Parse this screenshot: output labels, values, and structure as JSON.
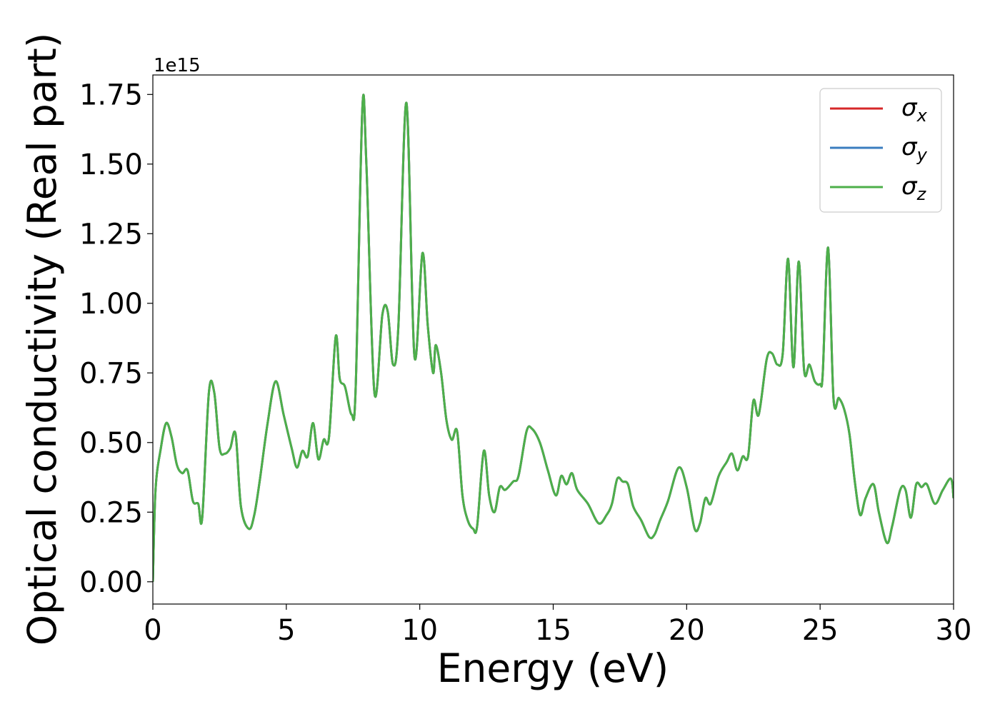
{
  "chart_data": {
    "type": "line",
    "xlabel": "Energy (eV)",
    "ylabel": "Optical conductivity (Real part)",
    "y_offset_label": "1e15",
    "xlim": [
      0,
      30
    ],
    "ylim": [
      -0.08,
      1.82
    ],
    "x_ticks": [
      0,
      5,
      10,
      15,
      20,
      25,
      30
    ],
    "x_tick_labels": [
      "0",
      "5",
      "10",
      "15",
      "20",
      "25",
      "30"
    ],
    "y_ticks": [
      0.0,
      0.25,
      0.5,
      0.75,
      1.0,
      1.25,
      1.5,
      1.75
    ],
    "y_tick_labels": [
      "0.00",
      "0.25",
      "0.50",
      "0.75",
      "1.00",
      "1.25",
      "1.50",
      "1.75"
    ],
    "grid": false,
    "legend_position": "top-right",
    "legend": [
      {
        "symbol": "σ",
        "subscript": "x",
        "color": "#d62728"
      },
      {
        "symbol": "σ",
        "subscript": "y",
        "color": "#3a7dbf"
      },
      {
        "symbol": "σ",
        "subscript": "z",
        "color": "#4daf4a"
      }
    ],
    "series": [
      {
        "name": "σx",
        "color": "#d62728"
      },
      {
        "name": "σy",
        "color": "#3a7dbf"
      },
      {
        "name": "σz",
        "color": "#4daf4a"
      }
    ],
    "x": [
      0.0,
      0.1,
      0.3,
      0.5,
      0.7,
      0.9,
      1.1,
      1.3,
      1.5,
      1.7,
      1.85,
      2.1,
      2.3,
      2.5,
      2.7,
      2.9,
      3.1,
      3.3,
      3.6,
      3.8,
      4.0,
      4.3,
      4.6,
      4.9,
      5.2,
      5.4,
      5.6,
      5.8,
      6.0,
      6.2,
      6.4,
      6.6,
      6.85,
      7.0,
      7.2,
      7.45,
      7.6,
      7.85,
      8.0,
      8.3,
      8.6,
      8.8,
      9.0,
      9.2,
      9.5,
      9.8,
      10.1,
      10.3,
      10.5,
      10.6,
      10.8,
      11.0,
      11.2,
      11.4,
      11.6,
      11.8,
      12.0,
      12.15,
      12.4,
      12.6,
      12.8,
      13.0,
      13.2,
      13.5,
      13.7,
      14.0,
      14.2,
      14.5,
      14.8,
      15.1,
      15.3,
      15.5,
      15.7,
      15.9,
      16.3,
      16.7,
      17.0,
      17.2,
      17.4,
      17.6,
      17.8,
      18.0,
      18.3,
      18.6,
      18.8,
      19.0,
      19.3,
      19.7,
      20.0,
      20.3,
      20.5,
      20.7,
      20.9,
      21.2,
      21.5,
      21.7,
      21.9,
      22.1,
      22.3,
      22.5,
      22.7,
      23.0,
      23.2,
      23.4,
      23.6,
      23.8,
      24.0,
      24.2,
      24.4,
      24.6,
      24.8,
      25.0,
      25.1,
      25.3,
      25.5,
      25.7,
      25.9,
      26.1,
      26.3,
      26.5,
      26.7,
      27.0,
      27.2,
      27.5,
      27.7,
      28.0,
      28.2,
      28.4,
      28.6,
      28.8,
      29.0,
      29.3,
      29.6,
      29.9,
      30.0
    ],
    "y": [
      0.0,
      0.33,
      0.48,
      0.57,
      0.52,
      0.42,
      0.39,
      0.4,
      0.29,
      0.28,
      0.23,
      0.68,
      0.68,
      0.48,
      0.46,
      0.48,
      0.53,
      0.27,
      0.19,
      0.24,
      0.36,
      0.57,
      0.72,
      0.6,
      0.48,
      0.41,
      0.47,
      0.45,
      0.57,
      0.44,
      0.51,
      0.52,
      0.88,
      0.73,
      0.7,
      0.6,
      0.7,
      1.7,
      1.5,
      0.68,
      0.96,
      0.97,
      0.78,
      0.92,
      1.72,
      0.81,
      1.18,
      0.92,
      0.75,
      0.85,
      0.75,
      0.58,
      0.51,
      0.54,
      0.31,
      0.22,
      0.19,
      0.2,
      0.47,
      0.31,
      0.25,
      0.34,
      0.33,
      0.36,
      0.38,
      0.54,
      0.55,
      0.5,
      0.4,
      0.31,
      0.38,
      0.35,
      0.39,
      0.33,
      0.28,
      0.21,
      0.24,
      0.28,
      0.37,
      0.36,
      0.35,
      0.27,
      0.22,
      0.16,
      0.17,
      0.22,
      0.29,
      0.41,
      0.34,
      0.19,
      0.21,
      0.3,
      0.28,
      0.38,
      0.43,
      0.46,
      0.4,
      0.45,
      0.45,
      0.65,
      0.6,
      0.8,
      0.82,
      0.78,
      0.82,
      1.16,
      0.77,
      1.15,
      0.76,
      0.78,
      0.72,
      0.71,
      0.75,
      1.2,
      0.66,
      0.66,
      0.62,
      0.53,
      0.36,
      0.24,
      0.3,
      0.35,
      0.25,
      0.14,
      0.2,
      0.33,
      0.33,
      0.23,
      0.35,
      0.34,
      0.35,
      0.28,
      0.33,
      0.37,
      0.3
    ]
  }
}
